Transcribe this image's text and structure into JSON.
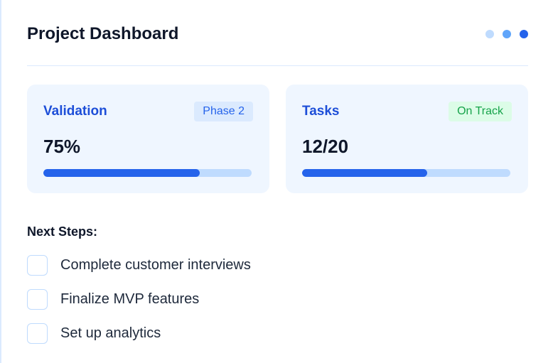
{
  "header": {
    "title": "Project Dashboard"
  },
  "cards": [
    {
      "label": "Validation",
      "badge": "Phase 2",
      "progress": {
        "value": 75,
        "label": "75%"
      }
    },
    {
      "label": "Tasks",
      "badge": "On Track",
      "progress": {
        "done": 12,
        "total": 20,
        "label": "12/20"
      }
    }
  ],
  "next_steps": {
    "title": "Next Steps:",
    "items": [
      "Complete customer interviews",
      "Finalize MVP features",
      "Set up analytics"
    ]
  }
}
